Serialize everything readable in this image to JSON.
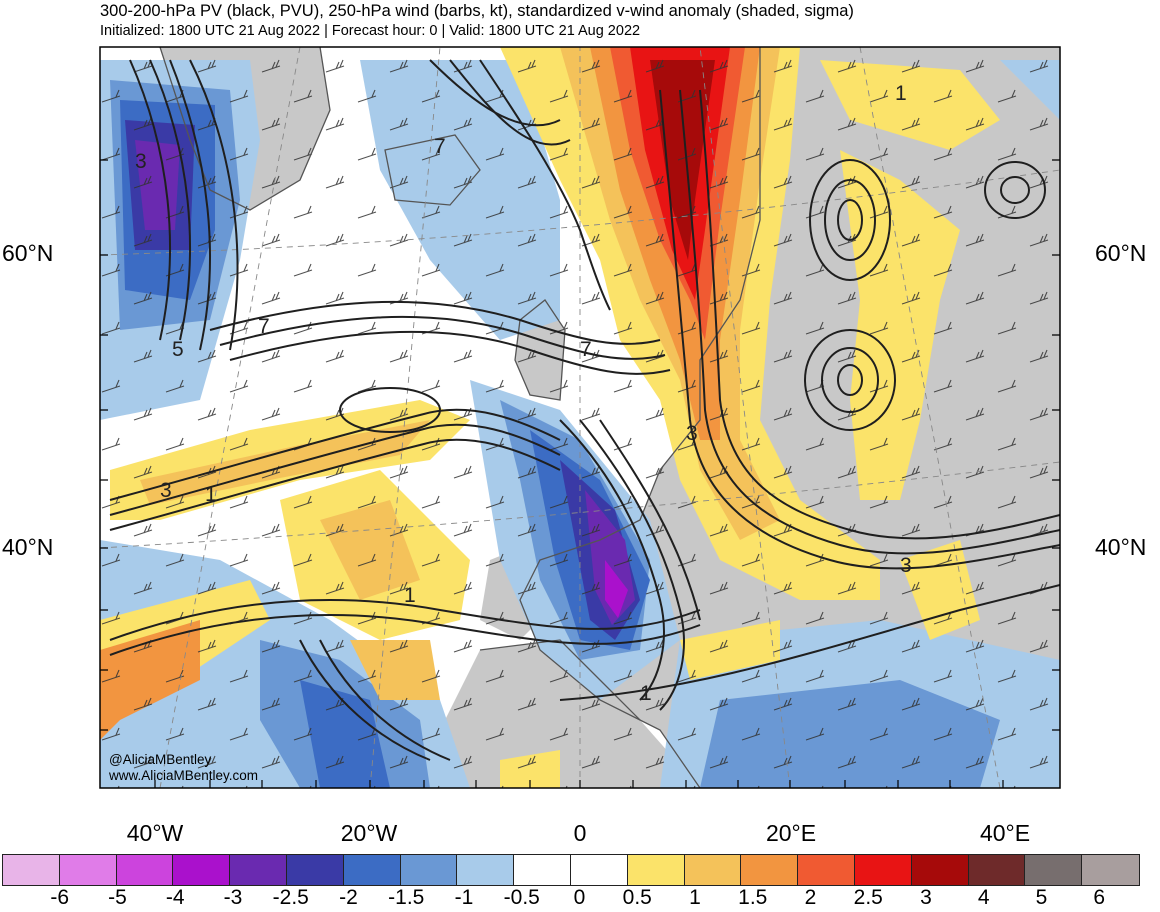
{
  "header": {
    "title": "300-200-hPa PV (black, PVU), 250-hPa wind (barbs, kt), standardized v-wind anomaly (shaded, sigma)",
    "subtitle": "Initialized: 1800 UTC 21 Aug 2022 | Forecast hour: 0 | Valid: 1800 UTC 21 Aug 2022"
  },
  "axes": {
    "lat_labels": {
      "lat60": "60°N",
      "lat40": "40°N"
    },
    "lon_labels": {
      "w40": "40°W",
      "w20": "20°W",
      "zero": "0",
      "e20": "20°E",
      "e40": "40°E"
    }
  },
  "contour_labels": {
    "greenland_3": "3",
    "atlantic_7": "7",
    "northsea_7": "7",
    "atlantic_5": "5",
    "iceland_7": "7",
    "atl_3": "3",
    "atl_1": "1",
    "azores_1": "1",
    "med_1": "1",
    "balkan_3": "3",
    "scand_1": "1",
    "europe_3": "3"
  },
  "credits": {
    "handle": "@AliciaMBentley",
    "website": "www.AliciaMBentley.com"
  },
  "colorbar": {
    "colors": [
      "#e8b4e8",
      "#e07ce8",
      "#cc44dd",
      "#aa11cc",
      "#6a2ab0",
      "#3a3aa6",
      "#3c6cc4",
      "#6a98d4",
      "#a8cbea",
      "#ffffff",
      "#ffffff",
      "#fbe36a",
      "#f4c25a",
      "#f29540",
      "#f05a32",
      "#e81414",
      "#a60a0a",
      "#6e2a2a",
      "#776e6e",
      "#a89e9e"
    ],
    "labels": [
      "-6",
      "-5",
      "-4",
      "-3",
      "-2.5",
      "-2",
      "-1.5",
      "-1",
      "-0.5",
      "0",
      "0.5",
      "1",
      "1.5",
      "2",
      "2.5",
      "3",
      "4",
      "5",
      "6"
    ]
  }
}
